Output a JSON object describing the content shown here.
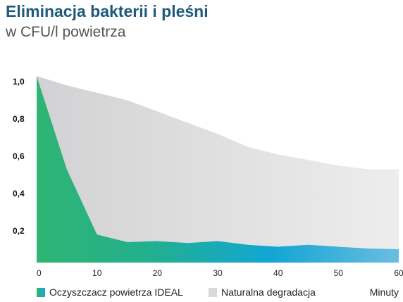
{
  "chart_data": {
    "type": "area",
    "title": "Eliminacja bakterii i pleśni",
    "subtitle": "w CFU/l powietrza",
    "xlabel": "Minuty",
    "ylabel": "",
    "xlim": [
      0,
      60
    ],
    "ylim": [
      0,
      1.0
    ],
    "x_ticks": [
      "0",
      "10",
      "20",
      "30",
      "40",
      "50",
      "60"
    ],
    "y_ticks": [
      "1,0",
      "0,8",
      "0,6",
      "0,4",
      "0,2"
    ],
    "grid": false,
    "legend_position": "bottom",
    "series": [
      {
        "name": "Naturalna degradacja",
        "color": "#d9d9d9",
        "x": [
          0,
          5,
          10,
          15,
          20,
          25,
          30,
          35,
          40,
          45,
          50,
          55,
          60
        ],
        "y": [
          1.0,
          0.95,
          0.91,
          0.87,
          0.81,
          0.75,
          0.69,
          0.62,
          0.58,
          0.55,
          0.52,
          0.5,
          0.5
        ]
      },
      {
        "name": "Oczyszczacz powietrza IDEAL",
        "color_start": "#2fb574",
        "color_end": "#1aa7d6",
        "x": [
          0,
          5,
          10,
          15,
          20,
          25,
          30,
          35,
          40,
          45,
          50,
          55,
          60
        ],
        "y": [
          1.0,
          0.5,
          0.15,
          0.11,
          0.115,
          0.105,
          0.115,
          0.095,
          0.085,
          0.095,
          0.085,
          0.075,
          0.072
        ]
      }
    ]
  }
}
